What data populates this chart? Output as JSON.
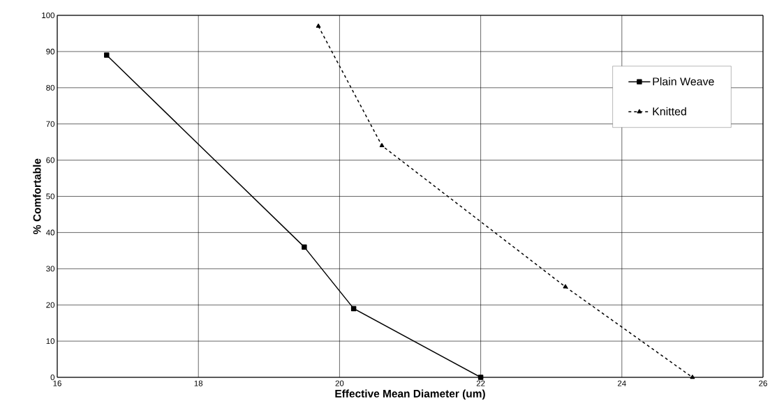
{
  "chart_data": {
    "type": "line",
    "xlabel": "Effective Mean Diameter (um)",
    "ylabel": "% Comfortable",
    "xlim": [
      16,
      26
    ],
    "xticks": [
      16,
      18,
      20,
      22,
      24,
      26
    ],
    "ylim": [
      0,
      100
    ],
    "yticks": [
      0,
      10,
      20,
      30,
      40,
      50,
      60,
      70,
      80,
      90,
      100
    ],
    "grid": true,
    "legend": "top right",
    "series": [
      {
        "name": "Plain Weave",
        "color": "#000000",
        "marker": "square",
        "line_style": "solid",
        "x": [
          16.7,
          19.5,
          20.2,
          22.0
        ],
        "values": [
          89,
          36,
          19,
          0
        ]
      },
      {
        "name": "Knitted",
        "color": "#000000",
        "marker": "triangle",
        "line_style": "dashed",
        "x": [
          19.7,
          20.6,
          23.2,
          25.0
        ],
        "values": [
          97,
          64,
          25,
          0
        ]
      }
    ]
  }
}
